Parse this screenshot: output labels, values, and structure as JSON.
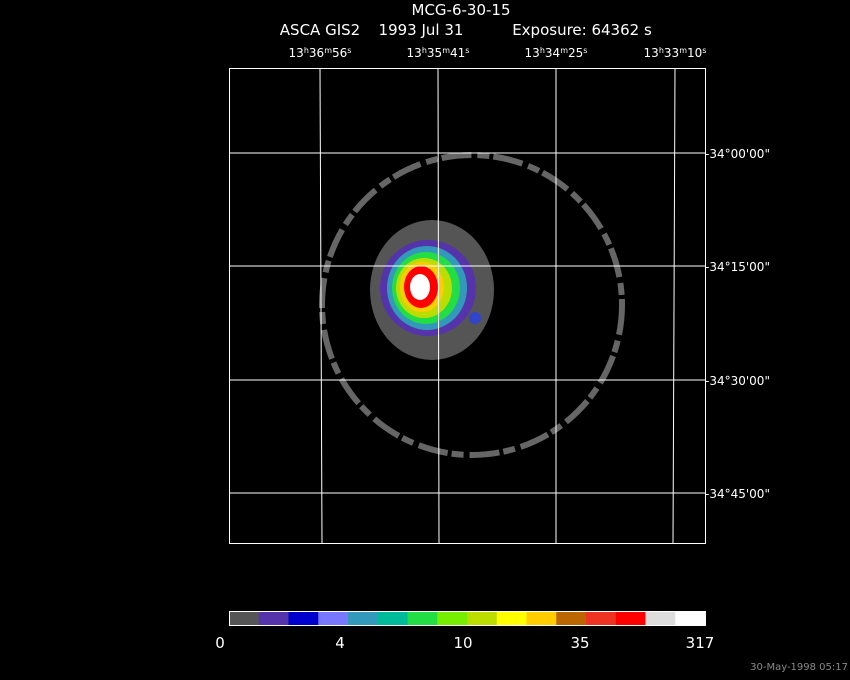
{
  "title": "MCG-6-30-15",
  "subtitle": {
    "instrument": "ASCA GIS2",
    "date": "1993 Jul 31",
    "exposure": "Exposure: 64362 s"
  },
  "ra_labels": [
    [
      "13",
      "h",
      "36",
      "m",
      "56",
      "s"
    ],
    [
      "13",
      "h",
      "35",
      "m",
      "41",
      "s"
    ],
    [
      "13",
      "h",
      "34",
      "m",
      "25",
      "s"
    ],
    [
      "13",
      "h",
      "33",
      "m",
      "10",
      "s"
    ]
  ],
  "dec_labels": [
    "-34°00'00\"",
    "-34°15'00\"",
    "-34°30'00\"",
    "-34°45'00\""
  ],
  "colorbar": {
    "colors": [
      "#555555",
      "#5533aa",
      "#0000cc",
      "#7777ff",
      "#3399bb",
      "#00bb99",
      "#22dd44",
      "#77ee00",
      "#bbdd00",
      "#ffff00",
      "#ffcc00",
      "#bb6600",
      "#ee3322",
      "#ff0000",
      "#dddddd",
      "#ffffff"
    ],
    "labels": [
      "0",
      "4",
      "10",
      "35",
      "317"
    ]
  },
  "timestamp": "30-May-1998 05:17"
}
